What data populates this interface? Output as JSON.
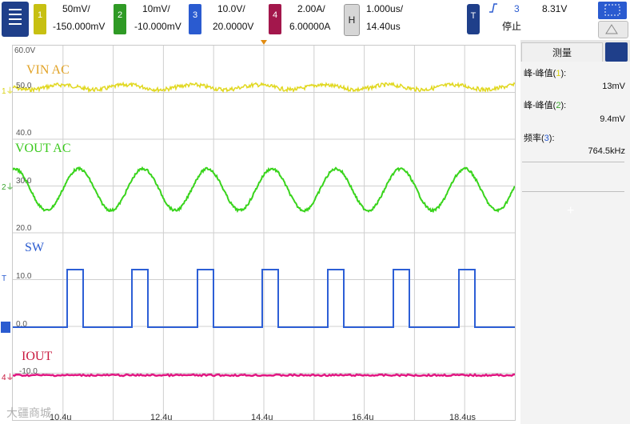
{
  "topbar": {
    "ch1": {
      "num": "1",
      "scale": "50mV/",
      "offset": "-150.000mV",
      "color": "#d9d213"
    },
    "ch2": {
      "num": "2",
      "scale": "10mV/",
      "offset": "-10.000mV",
      "color": "#39a52c"
    },
    "ch3": {
      "num": "3",
      "scale": "10.0V/",
      "offset": "20.0000V",
      "color": "#2a5bd0"
    },
    "ch4": {
      "num": "4",
      "scale": "2.00A/",
      "offset": "6.00000A",
      "color": "#a3174c"
    },
    "horizontal": {
      "label": "H",
      "scale": "1.000us/",
      "pos": "14.40us"
    },
    "trigger": {
      "label": "T",
      "edge_icon": "rising-edge-icon",
      "channel": "3",
      "level": "8.31V",
      "status": "停止"
    }
  },
  "scope": {
    "labels": {
      "vin": "VIN AC",
      "vout": "VOUT AC",
      "sw": "SW",
      "iout": "IOUT"
    },
    "grid_values": {
      "top": "60.0V",
      "v50": "50.0",
      "v40": "40.0",
      "v30": "30.0",
      "v20": "20.0",
      "v10": "10.0",
      "v0": "0.0",
      "vm10": "-10.0"
    },
    "x_ticks": [
      "10.4u",
      "12.4u",
      "14.4u",
      "16.4u",
      "18.4us"
    ],
    "watermark": "大疆商城",
    "colors": {
      "vin": "#e1d820",
      "vout": "#39d41c",
      "sw": "#2d5fd6",
      "iout": "#e01681"
    }
  },
  "panel": {
    "tab": "测量",
    "measurements": [
      {
        "label": "峰-峰值",
        "ch": "1",
        "value": "13mV"
      },
      {
        "label": "峰-峰值",
        "ch": "2",
        "value": "9.4mV"
      },
      {
        "label": "频率",
        "ch": "3",
        "value": "764.5kHz"
      }
    ],
    "add_label": "+"
  }
}
